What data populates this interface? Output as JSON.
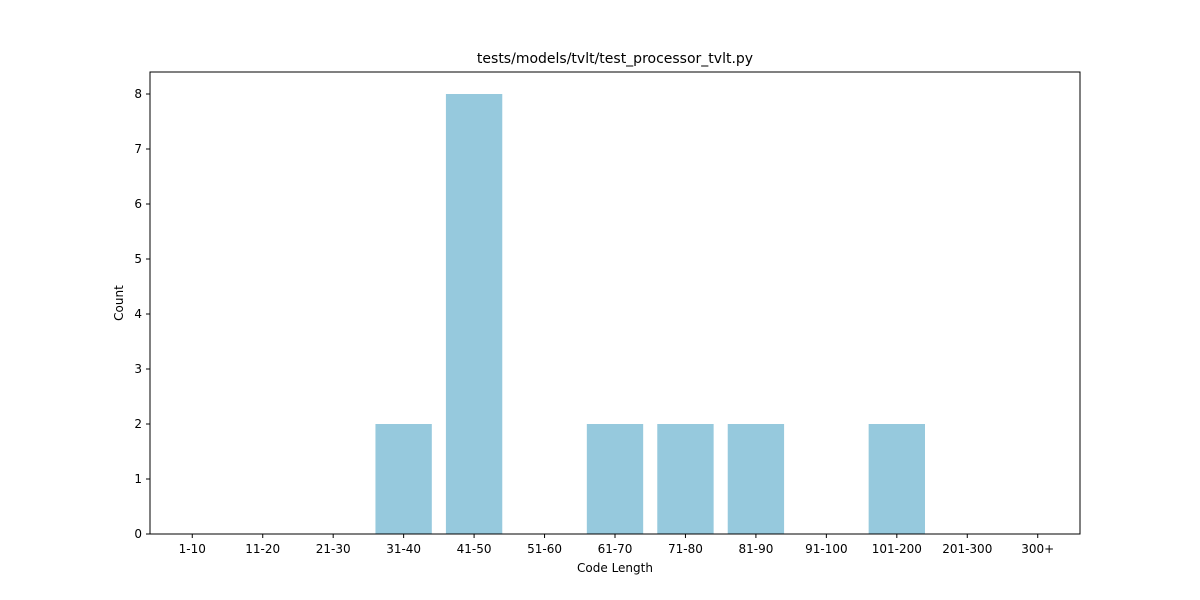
{
  "chart_data": {
    "type": "bar",
    "title": "tests/models/tvlt/test_processor_tvlt.py",
    "xlabel": "Code Length",
    "ylabel": "Count",
    "categories": [
      "1-10",
      "11-20",
      "21-30",
      "31-40",
      "41-50",
      "51-60",
      "61-70",
      "71-80",
      "81-90",
      "91-100",
      "101-200",
      "201-300",
      "300+"
    ],
    "values": [
      0,
      0,
      0,
      2,
      8,
      0,
      2,
      2,
      2,
      0,
      2,
      0,
      0
    ],
    "ylim": [
      0,
      8.4
    ],
    "yticks": [
      0,
      1,
      2,
      3,
      4,
      5,
      6,
      7,
      8
    ],
    "grid": false,
    "bar_color": "#96c9dd",
    "frame_color": "#000000"
  }
}
